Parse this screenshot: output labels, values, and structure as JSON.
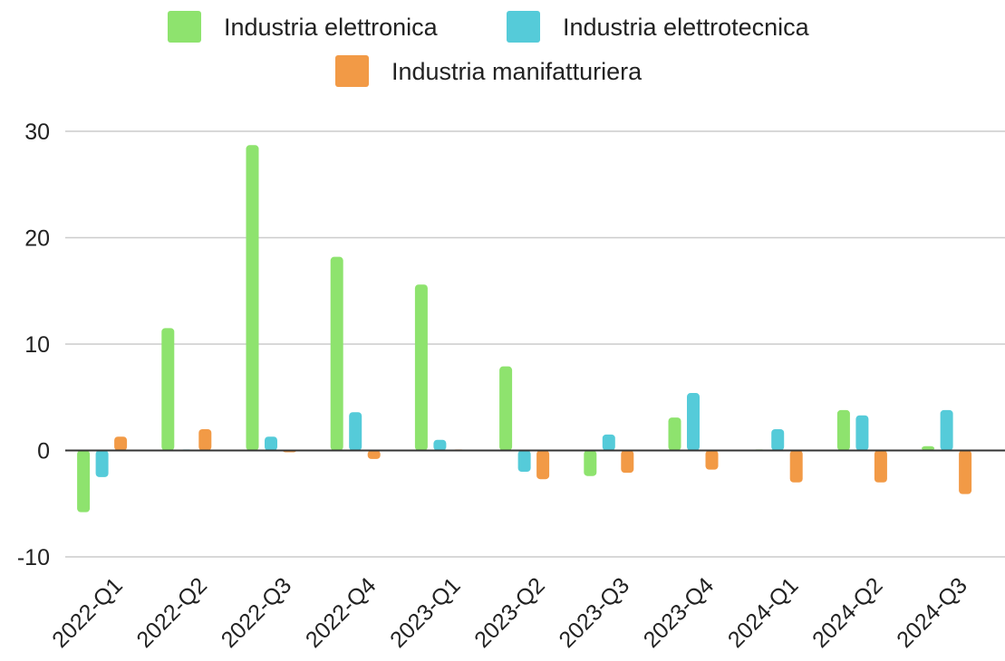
{
  "chart_data": {
    "type": "bar",
    "title": "",
    "xlabel": "",
    "ylabel": "",
    "ylim": [
      -10,
      30
    ],
    "yticks": [
      30,
      20,
      10,
      0,
      -10
    ],
    "grid": true,
    "legend_position": "top",
    "categories": [
      "2022-Q1",
      "2022-Q2",
      "2022-Q3",
      "2022-Q4",
      "2023-Q1",
      "2023-Q2",
      "2023-Q3",
      "2023-Q4",
      "2024-Q1",
      "2024-Q2",
      "2024-Q3"
    ],
    "series": [
      {
        "name": "Industria elettronica",
        "color": "#8ee36e",
        "values": [
          -5.8,
          11.5,
          28.7,
          18.2,
          15.6,
          7.9,
          -2.4,
          3.1,
          0.1,
          3.8,
          0.4
        ]
      },
      {
        "name": "Industria elettrotecnica",
        "color": "#55cbd9",
        "values": [
          -2.5,
          0.1,
          1.3,
          3.6,
          1.0,
          -2.0,
          1.5,
          5.4,
          2.0,
          3.3,
          3.8
        ]
      },
      {
        "name": "Industria manifatturiera",
        "color": "#f29a46",
        "values": [
          1.3,
          2.0,
          0.0,
          -0.8,
          0.1,
          -2.7,
          -2.1,
          -1.8,
          -3.0,
          -3.0,
          -4.1
        ]
      }
    ]
  }
}
